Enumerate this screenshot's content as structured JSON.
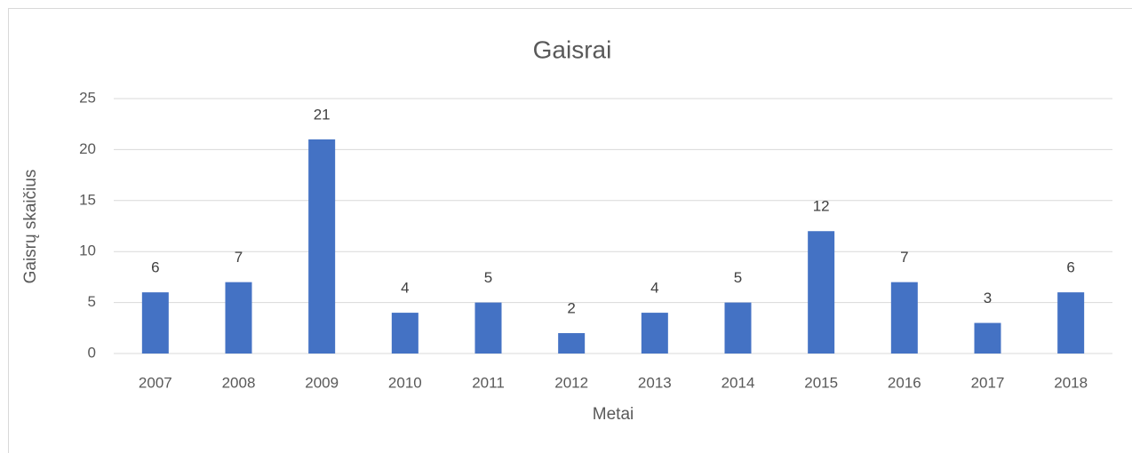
{
  "chart_data": {
    "type": "bar",
    "title": "Gaisrai",
    "x_label": "Metai",
    "y_label": "Gaisrų skaičius",
    "categories": [
      "2007",
      "2008",
      "2009",
      "2010",
      "2011",
      "2012",
      "2013",
      "2014",
      "2015",
      "2016",
      "2017",
      "2018"
    ],
    "values": [
      6,
      7,
      21,
      4,
      5,
      2,
      4,
      5,
      12,
      7,
      3,
      6
    ],
    "color": "#4472c4",
    "ylim": [
      0,
      25
    ],
    "yticks": [
      0,
      5,
      10,
      15,
      20,
      25
    ],
    "grid": true,
    "data_labels": true
  }
}
